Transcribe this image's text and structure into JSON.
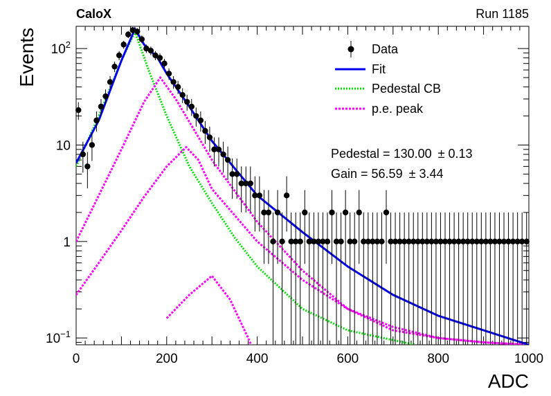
{
  "header": {
    "left_label": "CaloX",
    "right_label": "Run 1185"
  },
  "fit_results": {
    "pedestal_label": "Pedestal = 130.00",
    "pedestal_err": "± 0.13",
    "gain_label": "Gain = 56.59",
    "gain_err": "± 3.44"
  },
  "legend": {
    "position": "top-right",
    "entries": [
      {
        "label": "Data",
        "style": "marker"
      },
      {
        "label": "Fit",
        "style": "line"
      },
      {
        "label": "Pedestal CB",
        "style": "dotted"
      },
      {
        "label": "p.e. peak",
        "style": "dotted"
      }
    ]
  },
  "colors": {
    "data": "#000000",
    "fit": "#0000ee",
    "pedestal": "#00dd00",
    "pe": "#ff00ff"
  },
  "chart_data": {
    "type": "scatter",
    "xlabel": "ADC",
    "ylabel": "Events",
    "xlim": [
      0,
      1000
    ],
    "ylim": [
      0.085,
      170
    ],
    "yscale": "log",
    "grid": false,
    "x_ticks": [
      "0",
      "200",
      "400",
      "600",
      "800",
      "1000"
    ],
    "y_ticks": [
      {
        "value": 0.1,
        "label": "10",
        "sup": "−1"
      },
      {
        "value": 1,
        "label": "1",
        "sup": ""
      },
      {
        "value": 10,
        "label": "10",
        "sup": ""
      },
      {
        "value": 100,
        "label": "10",
        "sup": "2"
      }
    ],
    "data": {
      "x": [
        0,
        10,
        20,
        30,
        40,
        50,
        60,
        70,
        80,
        90,
        100,
        110,
        120,
        130,
        140,
        150,
        160,
        170,
        180,
        190,
        200,
        210,
        220,
        230,
        240,
        250,
        260,
        270,
        280,
        290,
        300,
        310,
        320,
        330,
        340,
        350,
        360,
        370,
        380,
        390,
        400,
        410,
        420,
        430,
        440,
        450,
        460,
        470,
        480,
        490,
        500,
        510,
        520,
        530,
        540,
        550,
        560,
        570,
        580,
        590,
        600,
        610,
        620,
        630,
        640,
        650,
        660,
        670,
        680,
        690,
        700,
        710,
        720,
        730,
        740,
        750,
        760,
        770,
        780,
        790,
        800,
        810,
        820,
        830,
        840,
        850,
        860,
        870,
        880,
        890,
        900,
        910,
        920,
        930,
        940,
        950,
        960,
        970,
        980,
        990
      ],
      "y": [
        23,
        8,
        6,
        10,
        18,
        25,
        32,
        45,
        65,
        85,
        110,
        140,
        155,
        150,
        125,
        100,
        95,
        85,
        80,
        70,
        55,
        45,
        40,
        33,
        28,
        25,
        20,
        18,
        14,
        12,
        9,
        9,
        8,
        7,
        5,
        5,
        4,
        4,
        4,
        3,
        3,
        2,
        2,
        1,
        2,
        1,
        3,
        1,
        1,
        1,
        2,
        1,
        1,
        1,
        1,
        1,
        2,
        1,
        1,
        2,
        1,
        1,
        2,
        1,
        1,
        1,
        1,
        1,
        2,
        1,
        1,
        1,
        1,
        1,
        1,
        1,
        1,
        1,
        1,
        1,
        1,
        1,
        1,
        1,
        1,
        1,
        1,
        1,
        1,
        1,
        1,
        1,
        1,
        1,
        1,
        1,
        1,
        1,
        1,
        1
      ]
    },
    "series": [
      {
        "name": "Fit",
        "x": [
          0,
          50,
          100,
          130,
          150,
          180,
          200,
          250,
          300,
          400,
          500,
          600,
          700,
          800,
          900,
          1000
        ],
        "y": [
          6.5,
          18,
          75,
          160,
          110,
          80,
          55,
          25,
          11,
          3.0,
          1.25,
          0.55,
          0.28,
          0.17,
          0.12,
          0.085
        ]
      },
      {
        "name": "Pedestal CB",
        "x": [
          0,
          50,
          100,
          130,
          160,
          200,
          250,
          300,
          350,
          400,
          500,
          600,
          700,
          750
        ],
        "y": [
          6,
          20,
          75,
          150,
          60,
          20,
          6.0,
          2.5,
          1.1,
          0.55,
          0.2,
          0.12,
          0.095,
          0.085
        ]
      },
      {
        "name": "p.e. peak",
        "x": [
          0,
          50,
          100,
          150,
          186,
          220,
          300,
          400,
          500,
          600,
          700,
          800,
          900,
          1000
        ],
        "y": [
          1.0,
          3.0,
          9.0,
          28,
          50,
          30,
          7.0,
          1.6,
          0.5,
          0.2,
          0.12,
          0.1,
          0.09,
          0.085
        ]
      },
      {
        "name": "p.e. peak",
        "x": [
          0,
          50,
          100,
          150,
          200,
          243,
          270,
          300,
          400,
          500,
          600,
          700,
          800,
          900,
          1000
        ],
        "y": [
          0.28,
          0.6,
          1.3,
          2.9,
          6.0,
          9.5,
          7.0,
          3.5,
          1.0,
          0.4,
          0.2,
          0.13,
          0.1,
          0.09,
          0.085
        ]
      },
      {
        "name": "p.e. peak",
        "x": [
          0,
          100,
          200,
          250,
          300,
          340,
          380,
          400
        ],
        "y": [
          0.0,
          0.0,
          0.16,
          0.28,
          0.44,
          0.25,
          0.1,
          0.06
        ]
      }
    ]
  }
}
